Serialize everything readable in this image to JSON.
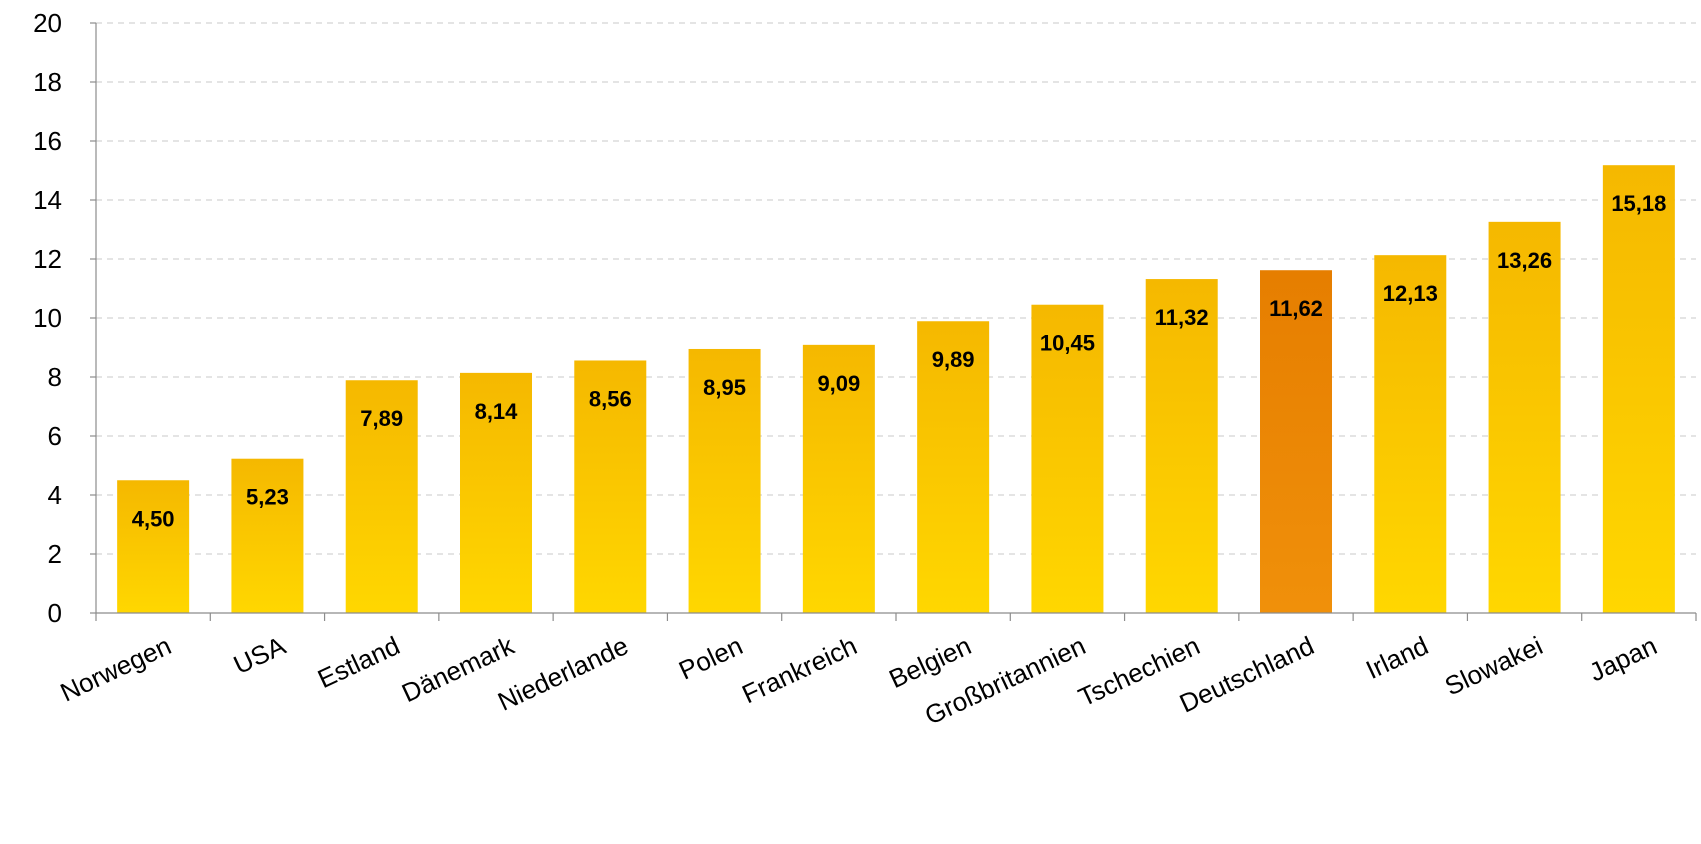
{
  "chart_data": {
    "type": "bar",
    "categories": [
      "Norwegen",
      "USA",
      "Estland",
      "Dänemark",
      "Niederlande",
      "Polen",
      "Frankreich",
      "Belgien",
      "Großbritannien",
      "Tschechien",
      "Deutschland",
      "Irland",
      "Slowakei",
      "Japan"
    ],
    "values": [
      4.5,
      5.23,
      7.89,
      8.14,
      8.56,
      8.95,
      9.09,
      9.89,
      10.45,
      11.32,
      11.62,
      12.13,
      13.26,
      15.18
    ],
    "value_labels": [
      "4,50",
      "5,23",
      "7,89",
      "8,14",
      "8,56",
      "8,95",
      "9,09",
      "9,89",
      "10,45",
      "11,32",
      "11,62",
      "12,13",
      "13,26",
      "15,18"
    ],
    "highlight_category": "Deutschland",
    "ylim": [
      0,
      20
    ],
    "yticks": [
      "0",
      "2",
      "4",
      "6",
      "8",
      "10",
      "12",
      "14",
      "16",
      "18",
      "20"
    ],
    "grid": true,
    "legend": "none",
    "colors": {
      "bar_top": "#f5b800",
      "bar_bottom": "#ffd700",
      "highlight_top": "#e67e00",
      "highlight_bottom": "#f0900a"
    }
  }
}
